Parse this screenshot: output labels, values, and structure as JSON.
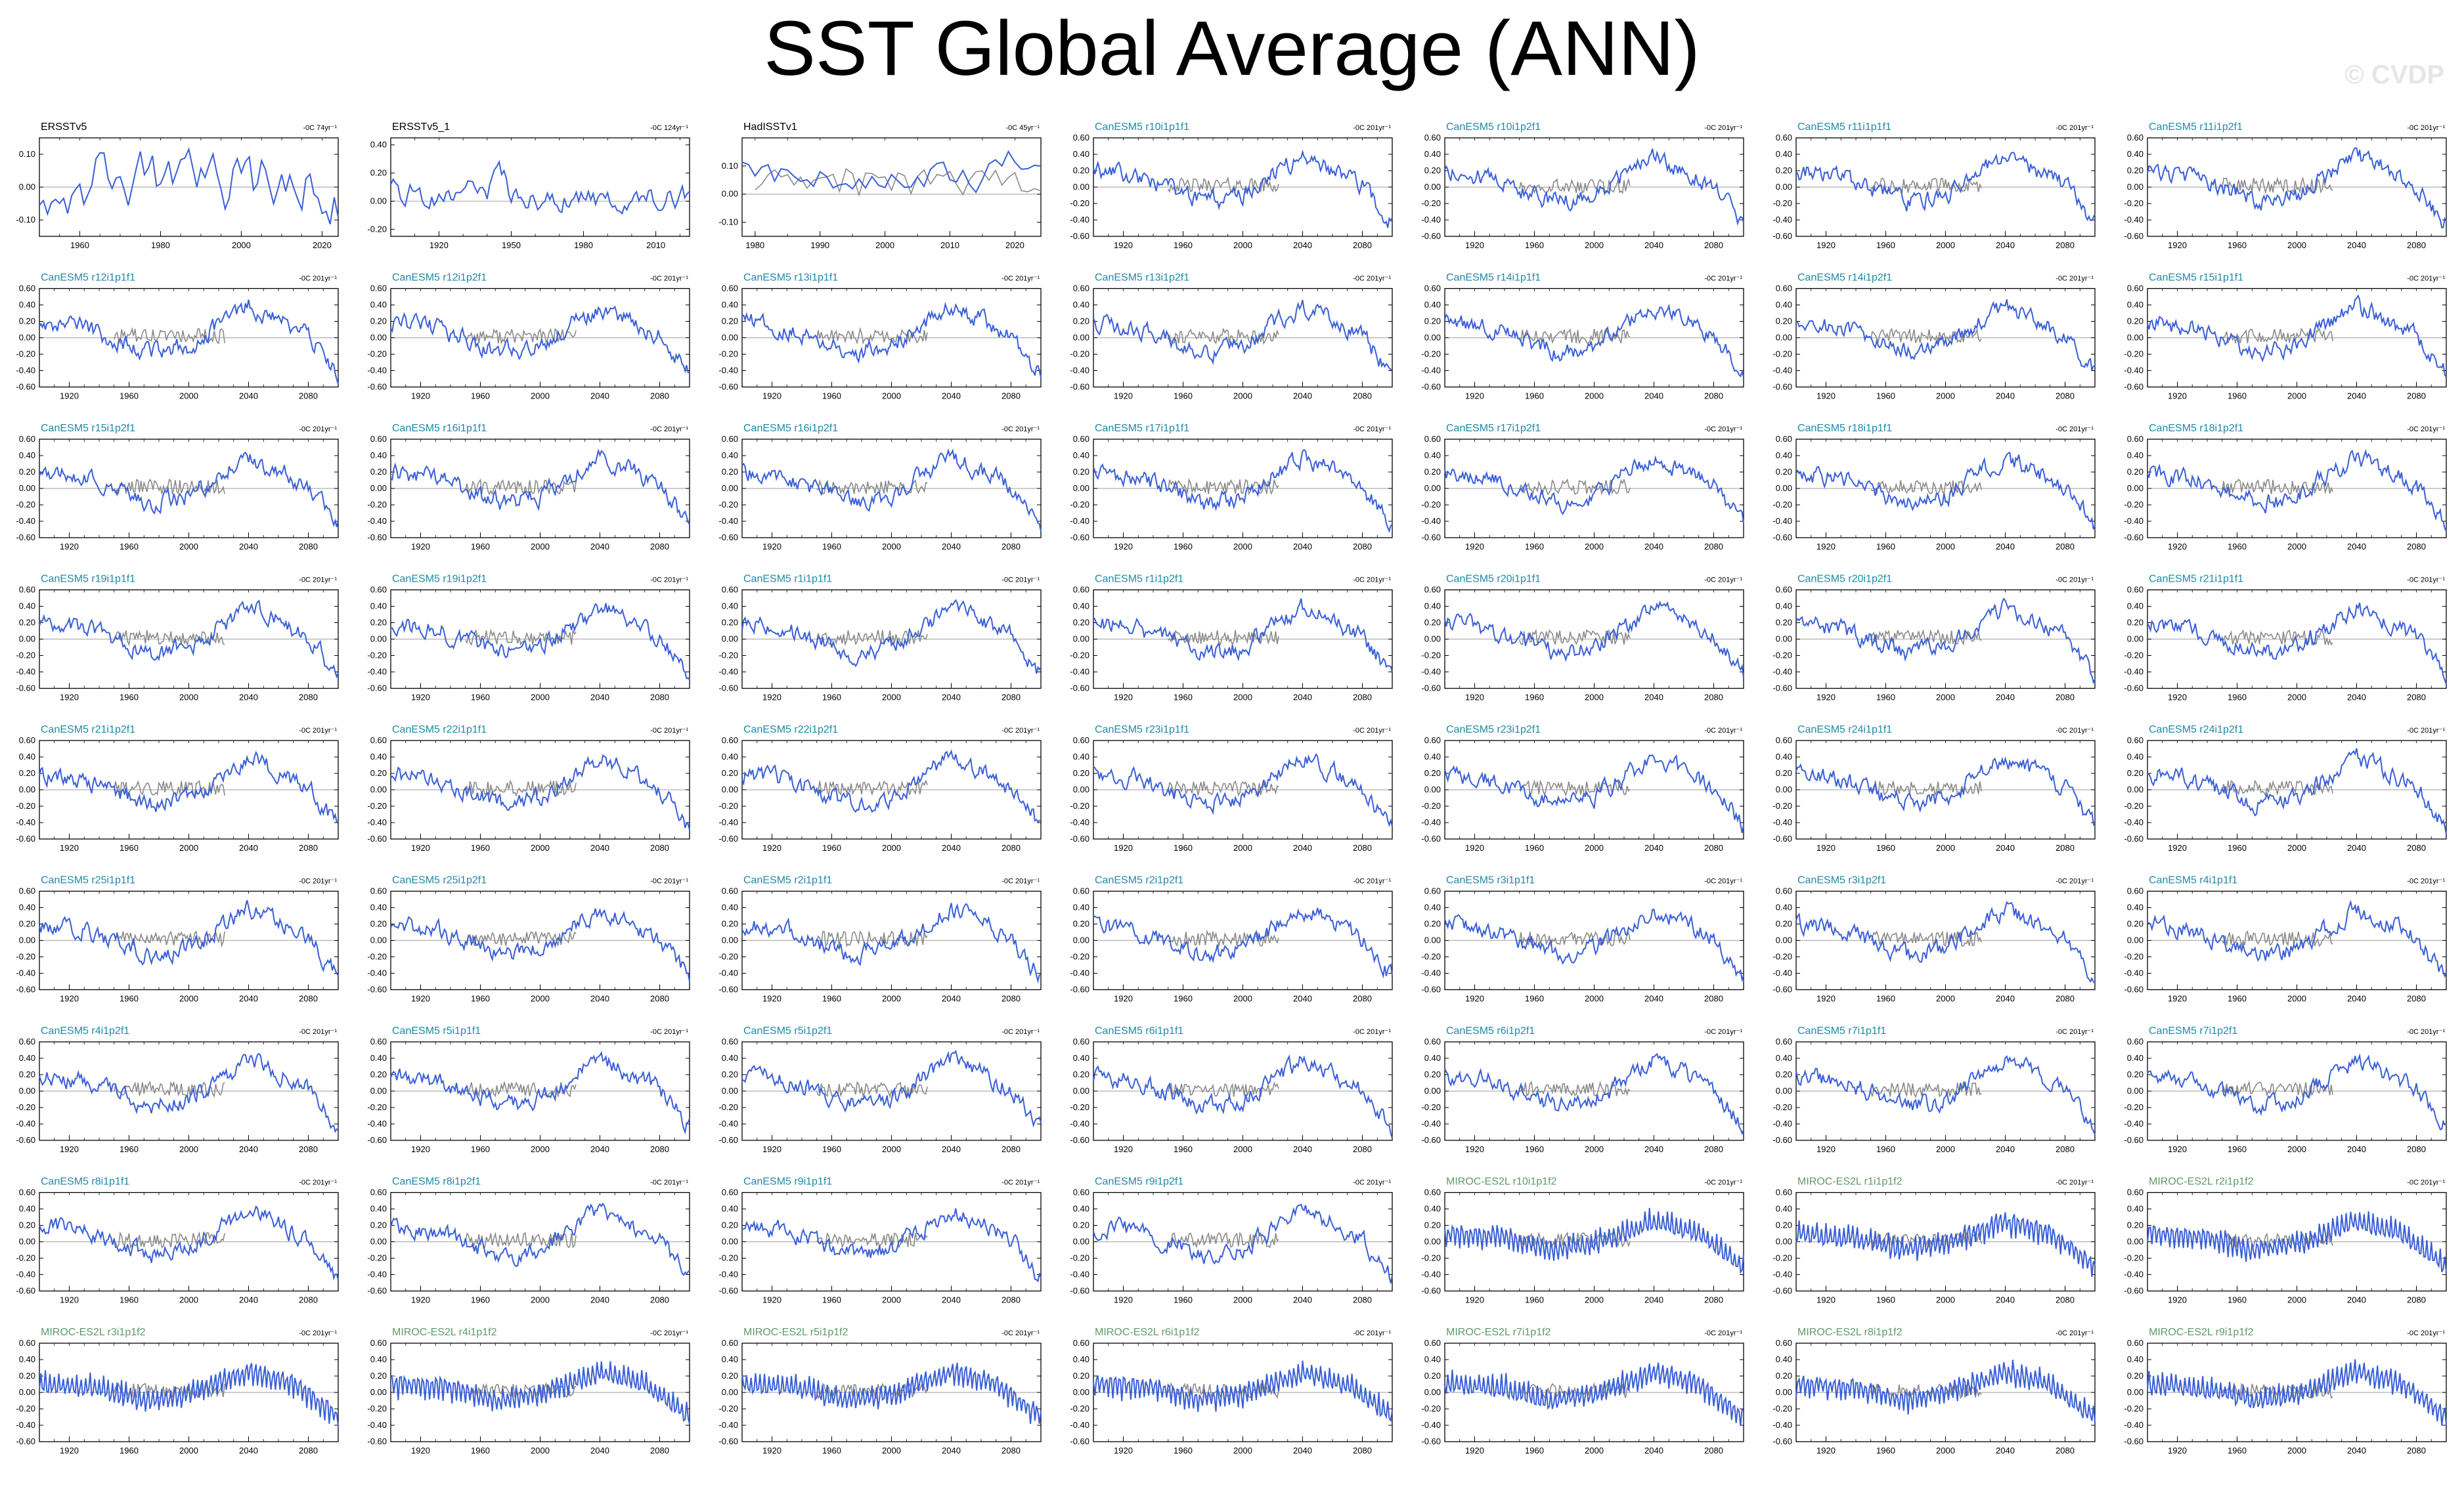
{
  "title": "SST Global Average (ANN)",
  "watermark": "© CVDP",
  "colors": {
    "model_line": "#3a5fd6",
    "obs_overlay": "#8a8a8a",
    "zero_line": "#b0b0b0",
    "title_obs": "#000000",
    "title_canesm": "#1f8aa8",
    "title_miroc": "#5f9a6a"
  },
  "chart_data": {
    "type": "line",
    "layout": "small multiples, 9 rows x 7 columns",
    "panels": [
      {
        "title": "ERSSTv5",
        "trend": "-0C 74yr⁻¹",
        "group": "obs",
        "kind": "obs1",
        "xlim": [
          1950,
          2024
        ],
        "xticks": [
          1960,
          1980,
          2000,
          2020
        ],
        "ylim": [
          -0.15,
          0.15
        ],
        "yticks": [
          -0.1,
          0.0,
          0.1
        ]
      },
      {
        "title": "ERSSTv5_1",
        "trend": "-0C 124yr⁻¹",
        "group": "obs",
        "kind": "obs2",
        "xlim": [
          1900,
          2024
        ],
        "xticks": [
          1920,
          1950,
          1980,
          2010
        ],
        "ylim": [
          -0.25,
          0.45
        ],
        "yticks": [
          -0.2,
          0.0,
          0.2,
          0.4
        ]
      },
      {
        "title": "HadISSTv1",
        "trend": "-0C 45yr⁻¹",
        "group": "obs",
        "kind": "obs3",
        "xlim": [
          1978,
          2024
        ],
        "xticks": [
          1980,
          1990,
          2000,
          2010,
          2020
        ],
        "ylim": [
          -0.15,
          0.2
        ],
        "yticks": [
          -0.1,
          0.0,
          0.1
        ]
      },
      {
        "title": "CanESM5 r10i1p1f1",
        "trend": "-0C 201yr⁻¹",
        "group": "canesm"
      },
      {
        "title": "CanESM5 r10i1p2f1",
        "trend": "-0C 201yr⁻¹",
        "group": "canesm"
      },
      {
        "title": "CanESM5 r11i1p1f1",
        "trend": "-0C 201yr⁻¹",
        "group": "canesm"
      },
      {
        "title": "CanESM5 r11i1p2f1",
        "trend": "-0C 201yr⁻¹",
        "group": "canesm"
      },
      {
        "title": "CanESM5 r12i1p1f1",
        "trend": "-0C 201yr⁻¹",
        "group": "canesm"
      },
      {
        "title": "CanESM5 r12i1p2f1",
        "trend": "-0C 201yr⁻¹",
        "group": "canesm"
      },
      {
        "title": "CanESM5 r13i1p1f1",
        "trend": "-0C 201yr⁻¹",
        "group": "canesm"
      },
      {
        "title": "CanESM5 r13i1p2f1",
        "trend": "-0C 201yr⁻¹",
        "group": "canesm"
      },
      {
        "title": "CanESM5 r14i1p1f1",
        "trend": "-0C 201yr⁻¹",
        "group": "canesm"
      },
      {
        "title": "CanESM5 r14i1p2f1",
        "trend": "-0C 201yr⁻¹",
        "group": "canesm"
      },
      {
        "title": "CanESM5 r15i1p1f1",
        "trend": "-0C 201yr⁻¹",
        "group": "canesm"
      },
      {
        "title": "CanESM5 r15i1p2f1",
        "trend": "-0C 201yr⁻¹",
        "group": "canesm"
      },
      {
        "title": "CanESM5 r16i1p1f1",
        "trend": "-0C 201yr⁻¹",
        "group": "canesm"
      },
      {
        "title": "CanESM5 r16i1p2f1",
        "trend": "-0C 201yr⁻¹",
        "group": "canesm"
      },
      {
        "title": "CanESM5 r17i1p1f1",
        "trend": "-0C 201yr⁻¹",
        "group": "canesm"
      },
      {
        "title": "CanESM5 r17i1p2f1",
        "trend": "-0C 201yr⁻¹",
        "group": "canesm"
      },
      {
        "title": "CanESM5 r18i1p1f1",
        "trend": "-0C 201yr⁻¹",
        "group": "canesm"
      },
      {
        "title": "CanESM5 r18i1p2f1",
        "trend": "-0C 201yr⁻¹",
        "group": "canesm"
      },
      {
        "title": "CanESM5 r19i1p1f1",
        "trend": "-0C 201yr⁻¹",
        "group": "canesm"
      },
      {
        "title": "CanESM5 r19i1p2f1",
        "trend": "-0C 201yr⁻¹",
        "group": "canesm"
      },
      {
        "title": "CanESM5 r1i1p1f1",
        "trend": "-0C 201yr⁻¹",
        "group": "canesm"
      },
      {
        "title": "CanESM5 r1i1p2f1",
        "trend": "-0C 201yr⁻¹",
        "group": "canesm"
      },
      {
        "title": "CanESM5 r20i1p1f1",
        "trend": "-0C 201yr⁻¹",
        "group": "canesm"
      },
      {
        "title": "CanESM5 r20i1p2f1",
        "trend": "-0C 201yr⁻¹",
        "group": "canesm"
      },
      {
        "title": "CanESM5 r21i1p1f1",
        "trend": "-0C 201yr⁻¹",
        "group": "canesm"
      },
      {
        "title": "CanESM5 r21i1p2f1",
        "trend": "-0C 201yr⁻¹",
        "group": "canesm"
      },
      {
        "title": "CanESM5 r22i1p1f1",
        "trend": "-0C 201yr⁻¹",
        "group": "canesm"
      },
      {
        "title": "CanESM5 r22i1p2f1",
        "trend": "-0C 201yr⁻¹",
        "group": "canesm"
      },
      {
        "title": "CanESM5 r23i1p1f1",
        "trend": "-0C 201yr⁻¹",
        "group": "canesm"
      },
      {
        "title": "CanESM5 r23i1p2f1",
        "trend": "-0C 201yr⁻¹",
        "group": "canesm"
      },
      {
        "title": "CanESM5 r24i1p1f1",
        "trend": "-0C 201yr⁻¹",
        "group": "canesm"
      },
      {
        "title": "CanESM5 r24i1p2f1",
        "trend": "-0C 201yr⁻¹",
        "group": "canesm"
      },
      {
        "title": "CanESM5 r25i1p1f1",
        "trend": "-0C 201yr⁻¹",
        "group": "canesm"
      },
      {
        "title": "CanESM5 r25i1p2f1",
        "trend": "-0C 201yr⁻¹",
        "group": "canesm"
      },
      {
        "title": "CanESM5 r2i1p1f1",
        "trend": "-0C 201yr⁻¹",
        "group": "canesm"
      },
      {
        "title": "CanESM5 r2i1p2f1",
        "trend": "-0C 201yr⁻¹",
        "group": "canesm"
      },
      {
        "title": "CanESM5 r3i1p1f1",
        "trend": "-0C 201yr⁻¹",
        "group": "canesm"
      },
      {
        "title": "CanESM5 r3i1p2f1",
        "trend": "-0C 201yr⁻¹",
        "group": "canesm"
      },
      {
        "title": "CanESM5 r4i1p1f1",
        "trend": "-0C 201yr⁻¹",
        "group": "canesm"
      },
      {
        "title": "CanESM5 r4i1p2f1",
        "trend": "-0C 201yr⁻¹",
        "group": "canesm"
      },
      {
        "title": "CanESM5 r5i1p1f1",
        "trend": "-0C 201yr⁻¹",
        "group": "canesm"
      },
      {
        "title": "CanESM5 r5i1p2f1",
        "trend": "-0C 201yr⁻¹",
        "group": "canesm"
      },
      {
        "title": "CanESM5 r6i1p1f1",
        "trend": "-0C 201yr⁻¹",
        "group": "canesm"
      },
      {
        "title": "CanESM5 r6i1p2f1",
        "trend": "-0C 201yr⁻¹",
        "group": "canesm"
      },
      {
        "title": "CanESM5 r7i1p1f1",
        "trend": "-0C 201yr⁻¹",
        "group": "canesm"
      },
      {
        "title": "CanESM5 r7i1p2f1",
        "trend": "-0C 201yr⁻¹",
        "group": "canesm"
      },
      {
        "title": "CanESM5 r8i1p1f1",
        "trend": "-0C 201yr⁻¹",
        "group": "canesm"
      },
      {
        "title": "CanESM5 r8i1p2f1",
        "trend": "-0C 201yr⁻¹",
        "group": "canesm"
      },
      {
        "title": "CanESM5 r9i1p1f1",
        "trend": "-0C 201yr⁻¹",
        "group": "canesm"
      },
      {
        "title": "CanESM5 r9i1p2f1",
        "trend": "-0C 201yr⁻¹",
        "group": "canesm"
      },
      {
        "title": "MIROC-ES2L r10i1p1f2",
        "trend": "-0C 201yr⁻¹",
        "group": "miroc"
      },
      {
        "title": "MIROC-ES2L r1i1p1f2",
        "trend": "-0C 201yr⁻¹",
        "group": "miroc"
      },
      {
        "title": "MIROC-ES2L r2i1p1f2",
        "trend": "-0C 201yr⁻¹",
        "group": "miroc"
      },
      {
        "title": "MIROC-ES2L r3i1p1f2",
        "trend": "-0C 201yr⁻¹",
        "group": "miroc"
      },
      {
        "title": "MIROC-ES2L r4i1p1f2",
        "trend": "-0C 201yr⁻¹",
        "group": "miroc"
      },
      {
        "title": "MIROC-ES2L r5i1p1f2",
        "trend": "-0C 201yr⁻¹",
        "group": "miroc"
      },
      {
        "title": "MIROC-ES2L r6i1p1f2",
        "trend": "-0C 201yr⁻¹",
        "group": "miroc"
      },
      {
        "title": "MIROC-ES2L r7i1p1f2",
        "trend": "-0C 201yr⁻¹",
        "group": "miroc"
      },
      {
        "title": "MIROC-ES2L r8i1p1f2",
        "trend": "-0C 201yr⁻¹",
        "group": "miroc"
      },
      {
        "title": "MIROC-ES2L r9i1p1f2",
        "trend": "-0C 201yr⁻¹",
        "group": "miroc"
      }
    ],
    "model_defaults": {
      "xlim": [
        1900,
        2100
      ],
      "xticks": [
        1920,
        1960,
        2000,
        2040,
        2080
      ],
      "ylim": [
        -0.6,
        0.6
      ],
      "yticks": [
        -0.6,
        -0.4,
        -0.2,
        0.0,
        0.2,
        0.4,
        0.6
      ],
      "obs_overlay_range": [
        1950,
        2024
      ]
    },
    "shape_keypoints": {
      "canesm": [
        [
          1900,
          0.2
        ],
        [
          1930,
          0.12
        ],
        [
          1960,
          -0.08
        ],
        [
          1975,
          -0.18
        ],
        [
          2000,
          -0.1
        ],
        [
          2020,
          0.15
        ],
        [
          2040,
          0.38
        ],
        [
          2060,
          0.22
        ],
        [
          2080,
          0.02
        ],
        [
          2100,
          -0.45
        ]
      ],
      "miroc": [
        [
          1900,
          0.1
        ],
        [
          1940,
          0.05
        ],
        [
          1970,
          -0.1
        ],
        [
          2000,
          -0.02
        ],
        [
          2040,
          0.25
        ],
        [
          2070,
          0.1
        ],
        [
          2100,
          -0.3
        ]
      ],
      "obs1": [
        [
          1950,
          0.0
        ],
        [
          1970,
          0.04
        ],
        [
          1990,
          0.0
        ],
        [
          2010,
          0.03
        ],
        [
          2024,
          -0.05
        ]
      ],
      "obs2": [
        [
          1900,
          0.05
        ],
        [
          1940,
          0.05
        ],
        [
          1945,
          0.3
        ],
        [
          1950,
          0.02
        ],
        [
          1980,
          0.0
        ],
        [
          2024,
          0.05
        ]
      ],
      "obs3": [
        [
          1978,
          0.08
        ],
        [
          1990,
          0.05
        ],
        [
          2000,
          0.02
        ],
        [
          2015,
          0.08
        ],
        [
          2024,
          0.12
        ]
      ]
    }
  }
}
